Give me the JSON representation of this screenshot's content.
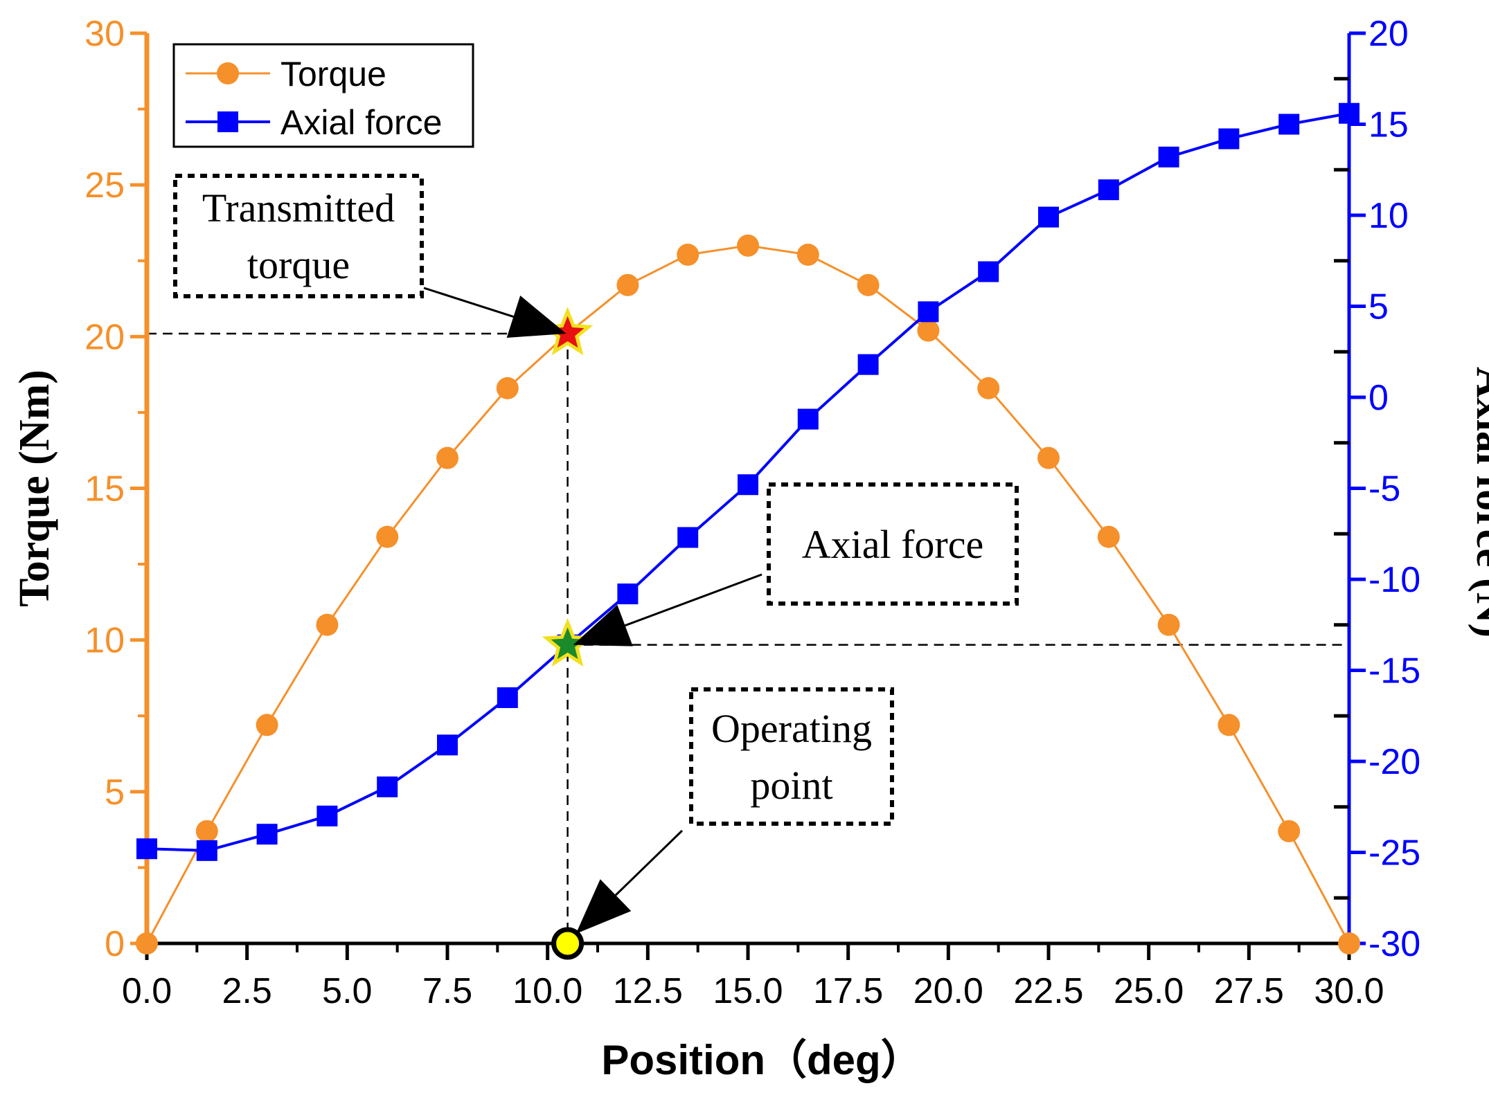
{
  "chart_data": {
    "type": "line",
    "xlabel": "Position（deg）",
    "ylabel_left": "Torque (Nm)",
    "ylabel_right": "Axial force (N)",
    "xlim": [
      0,
      30
    ],
    "ylim_left": [
      0,
      30
    ],
    "ylim_right": [
      -30,
      20
    ],
    "x_ticks": [
      "0.0",
      "2.5",
      "5.0",
      "7.5",
      "10.0",
      "12.5",
      "15.0",
      "17.5",
      "20.0",
      "22.5",
      "25.0",
      "27.5",
      "30.0"
    ],
    "x_tick_values": [
      0,
      2.5,
      5,
      7.5,
      10,
      12.5,
      15,
      17.5,
      20,
      22.5,
      25,
      27.5,
      30
    ],
    "y_left_ticks": [
      "0",
      "5",
      "10",
      "15",
      "20",
      "25",
      "30"
    ],
    "y_left_tick_values": [
      0,
      5,
      10,
      15,
      20,
      25,
      30
    ],
    "y_right_ticks": [
      "-30",
      "-25",
      "-20",
      "-15",
      "-10",
      "-5",
      "0",
      "5",
      "10",
      "15",
      "20"
    ],
    "y_right_tick_values": [
      -30,
      -25,
      -20,
      -15,
      -10,
      -5,
      0,
      5,
      10,
      15,
      20
    ],
    "x": [
      0,
      1.5,
      3,
      4.5,
      6,
      7.5,
      9,
      10.5,
      12,
      13.5,
      15,
      16.5,
      18,
      19.5,
      21,
      22.5,
      24,
      25.5,
      27,
      28.5,
      30
    ],
    "series": [
      {
        "name": "Torque",
        "axis": "left",
        "marker": "circle",
        "color": "#f5902a",
        "values": [
          0,
          3.7,
          7.2,
          10.5,
          13.4,
          16.0,
          18.3,
          20.1,
          21.7,
          22.7,
          23.0,
          22.7,
          21.7,
          20.2,
          18.3,
          16.0,
          13.4,
          10.5,
          7.2,
          3.7,
          0
        ]
      },
      {
        "name": "Axial force",
        "axis": "right",
        "marker": "square",
        "color": "#0000ff",
        "x": [
          0,
          1.5,
          3,
          4.5,
          6,
          7.5,
          9,
          10.5,
          12,
          13.5,
          15,
          16.5,
          18,
          19.5,
          21,
          22.5,
          24,
          25.5,
          27,
          28.5,
          30
        ],
        "values": [
          -24.8,
          -24.9,
          -24.0,
          -23.0,
          -21.4,
          -19.1,
          -16.5,
          -13.6,
          -10.8,
          -7.7,
          -4.8,
          -1.2,
          1.8,
          4.7,
          6.9,
          9.9,
          11.4,
          13.2,
          14.2,
          15.0,
          15.6
        ]
      }
    ],
    "annotations": {
      "transmitted_torque": {
        "lines": [
          "Transmitted",
          "torque"
        ],
        "x": 10.5,
        "torque": 20.1
      },
      "axial_force": {
        "lines": [
          "Axial force"
        ],
        "x": 10.5,
        "axial_force": -13.6
      },
      "operating_point": {
        "lines": [
          "Operating",
          "point"
        ],
        "x": 10.5,
        "torque": 0
      }
    },
    "colors": {
      "torque": "#f5902a",
      "axial": "#0000ff",
      "star_torque": "#e81010",
      "star_axial": "#1a8a2a",
      "star_outline": "#f2e020",
      "operating_point": "#ffff00"
    }
  }
}
